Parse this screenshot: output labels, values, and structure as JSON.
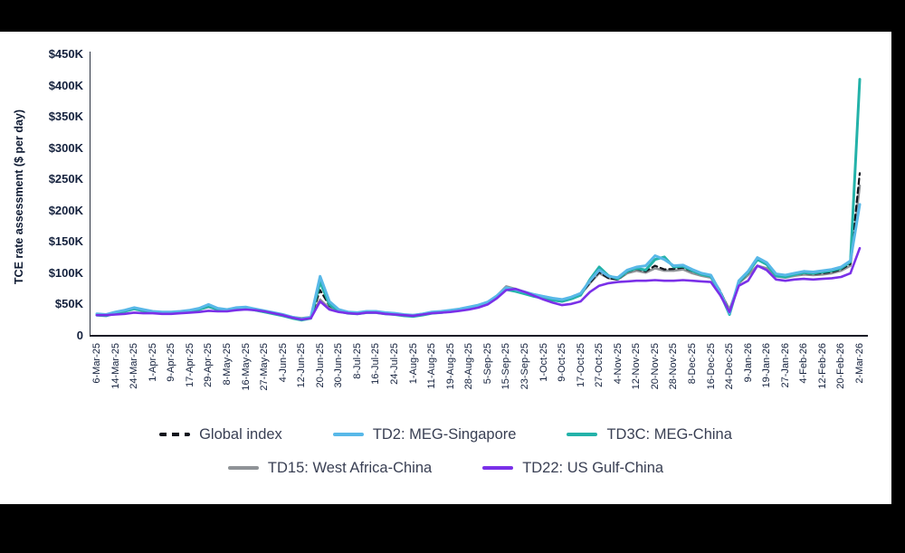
{
  "colors": {
    "background": "#000000",
    "canvas": "#ffffff",
    "axis_text": "#14213d",
    "legend_text": "#3a4054",
    "axis_line": "#171c26"
  },
  "chart_data": {
    "type": "line",
    "title": "",
    "xlabel": "",
    "ylabel": "TCE rate assessment ($ per day)",
    "units": "USD thousands per day",
    "ylim_k": [
      0,
      450
    ],
    "grid": "off",
    "legend_position": "bottom",
    "y_ticks": [
      "0",
      "$50K",
      "$100K",
      "$150K",
      "$200K",
      "$250K",
      "$300K",
      "$350K",
      "$400K",
      "$450K"
    ],
    "x_tick_labels": [
      "6-Mar-25",
      "14-Mar-25",
      "24-Mar-25",
      "1-Apr-25",
      "9-Apr-25",
      "17-Apr-25",
      "29-Apr-25",
      "8-May-25",
      "16-May-25",
      "27-May-25",
      "4-Jun-25",
      "12-Jun-25",
      "20-Jun-25",
      "30-Jun-25",
      "8-Jul-25",
      "16-Jul-25",
      "24-Jul-25",
      "1-Aug-25",
      "11-Aug-25",
      "19-Aug-25",
      "28-Aug-25",
      "5-Sep-25",
      "15-Sep-25",
      "23-Sep-25",
      "1-Oct-25",
      "9-Oct-25",
      "17-Oct-25",
      "27-Oct-25",
      "4-Nov-25",
      "12-Nov-25",
      "20-Nov-25",
      "28-Nov-25",
      "8-Dec-25",
      "16-Dec-25",
      "24-Dec-25",
      "9-Jan-26",
      "19-Jan-26",
      "27-Jan-26",
      "4-Feb-26",
      "12-Feb-26",
      "20-Feb-26",
      "2-Mar-26"
    ],
    "x_start": 0,
    "x_step": 0.5,
    "x_index_max": 41,
    "series": [
      {
        "name": "TD15: West Africa-China",
        "color": "#8f9397",
        "width": 2.6,
        "values_k": [
          34,
          33,
          36,
          39,
          43,
          40,
          37,
          36,
          36,
          37,
          39,
          42,
          46,
          42,
          40,
          43,
          44,
          41,
          38,
          36,
          33,
          30,
          28,
          30,
          58,
          44,
          40,
          37,
          36,
          38,
          38,
          36,
          35,
          33,
          33,
          35,
          37,
          38,
          40,
          42,
          45,
          48,
          53,
          64,
          79,
          75,
          70,
          66,
          63,
          60,
          58,
          61,
          66,
          84,
          100,
          92,
          90,
          100,
          104,
          101,
          108,
          104,
          104,
          106,
          100,
          96,
          93,
          70,
          42,
          84,
          97,
          112,
          108,
          95,
          93,
          96,
          98,
          97,
          98,
          100,
          104,
          112,
          240
        ]
      },
      {
        "name": "Global index",
        "color": "#10141c",
        "dash": [
          6,
          4
        ],
        "width": 2.2,
        "values_k": [
          35,
          34,
          37,
          40,
          44,
          41,
          38,
          37,
          37,
          38,
          40,
          43,
          48,
          43,
          41,
          44,
          45,
          42,
          39,
          36,
          33,
          29,
          27,
          29,
          73,
          48,
          40,
          37,
          36,
          38,
          38,
          36,
          35,
          33,
          32,
          34,
          37,
          38,
          40,
          42,
          45,
          48,
          52,
          62,
          75,
          72,
          68,
          65,
          62,
          59,
          57,
          60,
          66,
          85,
          102,
          92,
          90,
          102,
          107,
          103,
          112,
          106,
          107,
          109,
          103,
          98,
          95,
          72,
          38,
          85,
          100,
          122,
          114,
          97,
          95,
          98,
          100,
          99,
          100,
          102,
          106,
          115,
          260
        ]
      },
      {
        "name": "TD3C: MEG-China",
        "color": "#23b2a9",
        "width": 3,
        "values_k": [
          33,
          32,
          36,
          39,
          43,
          40,
          37,
          36,
          36,
          37,
          39,
          42,
          47,
          42,
          40,
          43,
          44,
          41,
          38,
          35,
          32,
          28,
          25,
          28,
          86,
          50,
          39,
          36,
          35,
          37,
          37,
          35,
          34,
          32,
          31,
          33,
          36,
          37,
          39,
          41,
          44,
          47,
          51,
          61,
          74,
          71,
          67,
          63,
          60,
          57,
          55,
          59,
          65,
          90,
          110,
          96,
          91,
          103,
          108,
          105,
          122,
          126,
          110,
          111,
          104,
          98,
          95,
          68,
          34,
          86,
          101,
          122,
          114,
          96,
          94,
          98,
          101,
          100,
          102,
          104,
          108,
          118,
          410
        ]
      },
      {
        "name": "TD2: MEG-Singapore",
        "color": "#58b8e8",
        "width": 3,
        "values_k": [
          35,
          34,
          38,
          41,
          45,
          42,
          39,
          38,
          38,
          39,
          41,
          44,
          50,
          44,
          42,
          45,
          46,
          43,
          40,
          37,
          34,
          30,
          27,
          30,
          95,
          55,
          42,
          38,
          37,
          39,
          39,
          37,
          36,
          34,
          33,
          35,
          38,
          39,
          41,
          43,
          46,
          49,
          54,
          64,
          77,
          74,
          70,
          66,
          63,
          60,
          58,
          62,
          68,
          88,
          105,
          95,
          93,
          105,
          110,
          112,
          128,
          122,
          112,
          113,
          106,
          100,
          97,
          70,
          36,
          88,
          103,
          125,
          117,
          99,
          97,
          100,
          103,
          102,
          104,
          106,
          110,
          120,
          210
        ]
      },
      {
        "name": "TD22: US Gulf-China",
        "color": "#7a30e8",
        "width": 2.6,
        "values_k": [
          33,
          33,
          34,
          35,
          37,
          36,
          36,
          35,
          35,
          36,
          37,
          38,
          40,
          39,
          39,
          41,
          42,
          41,
          39,
          36,
          33,
          29,
          26,
          28,
          55,
          42,
          38,
          36,
          35,
          37,
          37,
          35,
          34,
          33,
          32,
          34,
          36,
          37,
          38,
          40,
          42,
          45,
          50,
          60,
          73,
          75,
          70,
          64,
          58,
          53,
          49,
          51,
          55,
          70,
          80,
          84,
          86,
          87,
          88,
          88,
          89,
          88,
          88,
          89,
          88,
          87,
          86,
          65,
          38,
          80,
          88,
          112,
          105,
          90,
          88,
          90,
          91,
          90,
          91,
          92,
          94,
          100,
          140
        ]
      }
    ],
    "legend": {
      "rows": [
        [
          "Global index",
          "TD2: MEG-Singapore",
          "TD3C: MEG-China"
        ],
        [
          "TD15: West Africa-China",
          "TD22: US Gulf-China"
        ]
      ]
    }
  }
}
